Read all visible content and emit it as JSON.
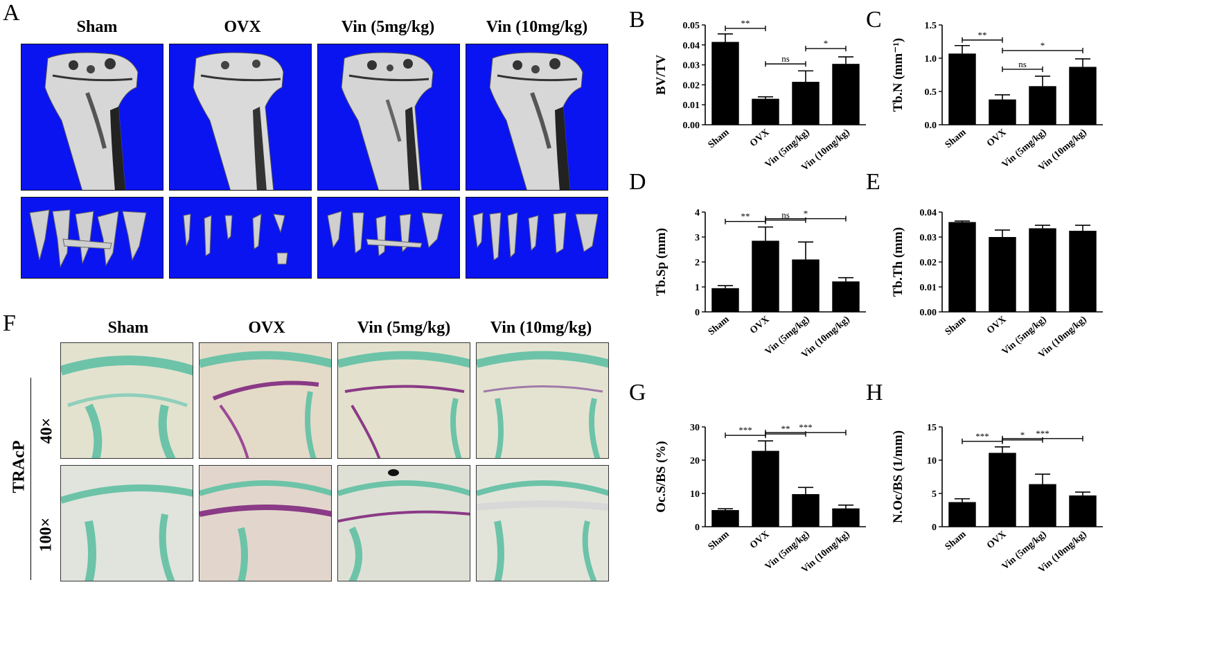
{
  "panel_a": {
    "letter": "A",
    "groups": [
      "Sham",
      "OVX",
      "Vin (5mg/kg)",
      "Vin (10mg/kg)"
    ]
  },
  "panel_f": {
    "letter": "F",
    "groups": [
      "Sham",
      "OVX",
      "Vin (5mg/kg)",
      "Vin (10mg/kg)"
    ],
    "stain_label": "TRAcP",
    "magnifications": [
      "40×",
      "100×"
    ]
  },
  "colors": {
    "ct_background": "#0a14f0",
    "bar": "#000000",
    "stain_green": "#6cc3a8",
    "stain_purple": "#8a3a86"
  },
  "chart_data": [
    {
      "id": "B",
      "type": "bar",
      "title": "",
      "ylabel": "BV/TV",
      "categories": [
        "Sham",
        "OVX",
        "Vin (5mg/kg)",
        "Vin (10mg/kg)"
      ],
      "values": [
        0.0415,
        0.013,
        0.0215,
        0.0305
      ],
      "errors": [
        0.004,
        0.001,
        0.0055,
        0.0035
      ],
      "ylim": [
        0,
        0.05
      ],
      "yticks": [
        "0.00",
        "0.01",
        "0.02",
        "0.03",
        "0.04",
        "0.05"
      ],
      "brackets": [
        {
          "from": 0,
          "to": 1,
          "label": "**"
        },
        {
          "from": 1,
          "to": 2,
          "label": "ns"
        },
        {
          "from": 2,
          "to": 3,
          "label": "*"
        }
      ]
    },
    {
      "id": "C",
      "type": "bar",
      "title": "",
      "ylabel": "Tb.N (mm⁻¹)",
      "categories": [
        "Sham",
        "OVX",
        "Vin (5mg/kg)",
        "Vin (10mg/kg)"
      ],
      "values": [
        1.07,
        0.38,
        0.58,
        0.87
      ],
      "errors": [
        0.12,
        0.07,
        0.15,
        0.12
      ],
      "ylim": [
        0,
        1.5
      ],
      "yticks": [
        "0.0",
        "0.5",
        "1.0",
        "1.5"
      ],
      "brackets": [
        {
          "from": 0,
          "to": 1,
          "label": "**"
        },
        {
          "from": 1,
          "to": 2,
          "label": "ns"
        },
        {
          "from": 1,
          "to": 3,
          "label": "*"
        }
      ]
    },
    {
      "id": "D",
      "type": "bar",
      "title": "",
      "ylabel": "Tb.Sp (mm)",
      "categories": [
        "Sham",
        "OVX",
        "Vin (5mg/kg)",
        "Vin (10mg/kg)"
      ],
      "values": [
        0.95,
        2.85,
        2.1,
        1.22
      ],
      "errors": [
        0.1,
        0.55,
        0.7,
        0.15
      ],
      "ylim": [
        0,
        4
      ],
      "yticks": [
        "0",
        "1",
        "2",
        "3",
        "4"
      ],
      "brackets": [
        {
          "from": 0,
          "to": 1,
          "label": "**"
        },
        {
          "from": 1,
          "to": 2,
          "label": "ns"
        },
        {
          "from": 1,
          "to": 3,
          "label": "*"
        }
      ]
    },
    {
      "id": "E",
      "type": "bar",
      "title": "",
      "ylabel": "Tb.Th (mm)",
      "categories": [
        "Sham",
        "OVX",
        "Vin (5mg/kg)",
        "Vin (10mg/kg)"
      ],
      "values": [
        0.036,
        0.03,
        0.0335,
        0.0325
      ],
      "errors": [
        0.0004,
        0.0028,
        0.0012,
        0.0022
      ],
      "ylim": [
        0,
        0.04
      ],
      "yticks": [
        "0.00",
        "0.01",
        "0.02",
        "0.03",
        "0.04"
      ],
      "brackets": []
    },
    {
      "id": "G",
      "type": "bar",
      "title": "",
      "ylabel": "Oc.S/BS (%)",
      "categories": [
        "Sham",
        "OVX",
        "Vin (5mg/kg)",
        "Vin (10mg/kg)"
      ],
      "values": [
        5.0,
        22.8,
        9.8,
        5.5
      ],
      "errors": [
        0.4,
        3.0,
        2.0,
        1.0
      ],
      "ylim": [
        0,
        30
      ],
      "yticks": [
        "0",
        "10",
        "20",
        "30"
      ],
      "brackets": [
        {
          "from": 0,
          "to": 1,
          "label": "***"
        },
        {
          "from": 1,
          "to": 2,
          "label": "**"
        },
        {
          "from": 1,
          "to": 3,
          "label": "***"
        }
      ]
    },
    {
      "id": "H",
      "type": "bar",
      "title": "",
      "ylabel": "N.Oc/BS (1/mm)",
      "categories": [
        "Sham",
        "OVX",
        "Vin (5mg/kg)",
        "Vin (10mg/kg)"
      ],
      "values": [
        3.7,
        11.1,
        6.4,
        4.7
      ],
      "errors": [
        0.5,
        0.9,
        1.5,
        0.5
      ],
      "ylim": [
        0,
        15
      ],
      "yticks": [
        "0",
        "5",
        "10",
        "15"
      ],
      "brackets": [
        {
          "from": 0,
          "to": 1,
          "label": "***"
        },
        {
          "from": 1,
          "to": 2,
          "label": "*"
        },
        {
          "from": 1,
          "to": 3,
          "label": "***"
        }
      ]
    }
  ]
}
